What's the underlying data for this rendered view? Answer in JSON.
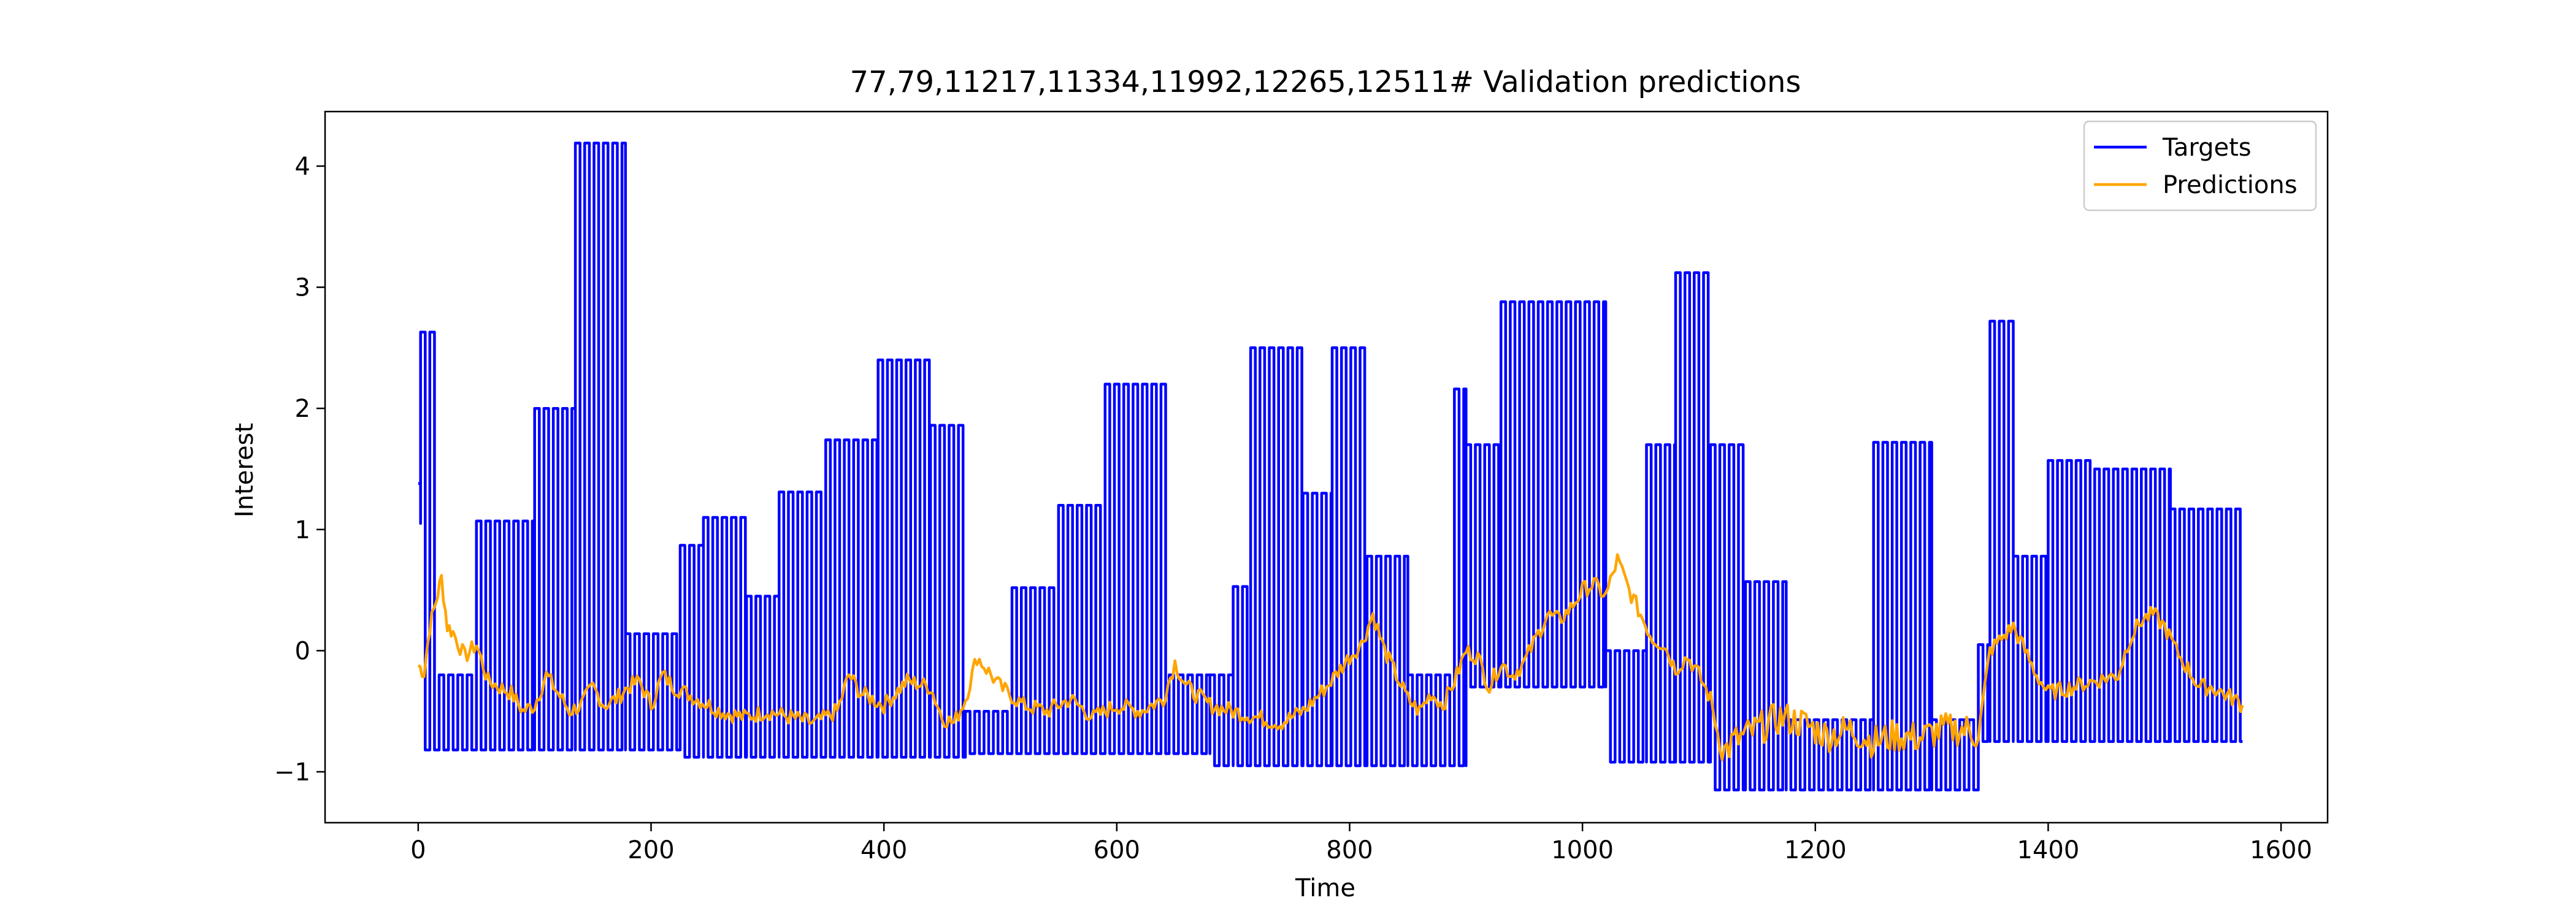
{
  "chart_data": {
    "type": "line",
    "title": "77,79,11217,11334,11992,12265,12511# Validation predictions",
    "xlabel": "Time",
    "ylabel": "Interest",
    "xlim": [
      -80,
      1640
    ],
    "ylim": [
      -1.42,
      4.45
    ],
    "xticks": [
      0,
      200,
      400,
      600,
      800,
      1000,
      1200,
      1400,
      1600
    ],
    "yticks": [
      -1,
      0,
      1,
      2,
      3,
      4
    ],
    "grid": false,
    "legend": "upper right",
    "colors": {
      "Targets": "#0000ff",
      "Predictions": "#ffa500"
    },
    "series": [
      {
        "name": "Targets",
        "style": "oscillating square wave between low and high envelope every ~8 steps",
        "segments": [
          {
            "x": [
              0,
              2
            ],
            "hi": 1.38,
            "lo": 1.05
          },
          {
            "x": [
              2,
              18
            ],
            "hi": 2.63,
            "lo": -0.82
          },
          {
            "x": [
              18,
              50
            ],
            "hi": -0.2,
            "lo": -0.82
          },
          {
            "x": [
              50,
              100
            ],
            "hi": 1.07,
            "lo": -0.82
          },
          {
            "x": [
              100,
              135
            ],
            "hi": 2.0,
            "lo": -0.82
          },
          {
            "x": [
              135,
              178
            ],
            "hi": 4.19,
            "lo": -0.82
          },
          {
            "x": [
              178,
              225
            ],
            "hi": 0.14,
            "lo": -0.82
          },
          {
            "x": [
              225,
              245
            ],
            "hi": 0.87,
            "lo": -0.88
          },
          {
            "x": [
              245,
              282
            ],
            "hi": 1.1,
            "lo": -0.88
          },
          {
            "x": [
              282,
              310
            ],
            "hi": 0.45,
            "lo": -0.88
          },
          {
            "x": [
              310,
              350
            ],
            "hi": 1.31,
            "lo": -0.88
          },
          {
            "x": [
              350,
              395
            ],
            "hi": 1.74,
            "lo": -0.88
          },
          {
            "x": [
              395,
              440
            ],
            "hi": 2.4,
            "lo": -0.88
          },
          {
            "x": [
              440,
              470
            ],
            "hi": 1.86,
            "lo": -0.88
          },
          {
            "x": [
              470,
              510
            ],
            "hi": -0.5,
            "lo": -0.85
          },
          {
            "x": [
              510,
              550
            ],
            "hi": 0.52,
            "lo": -0.85
          },
          {
            "x": [
              550,
              590
            ],
            "hi": 1.2,
            "lo": -0.85
          },
          {
            "x": [
              590,
              645
            ],
            "hi": 2.2,
            "lo": -0.85
          },
          {
            "x": [
              645,
              680
            ],
            "hi": -0.2,
            "lo": -0.85
          },
          {
            "x": [
              680,
              700
            ],
            "hi": -0.2,
            "lo": -0.95
          },
          {
            "x": [
              700,
              715
            ],
            "hi": 0.53,
            "lo": -0.95
          },
          {
            "x": [
              715,
              760
            ],
            "hi": 2.5,
            "lo": -0.95
          },
          {
            "x": [
              760,
              785
            ],
            "hi": 1.3,
            "lo": -0.95
          },
          {
            "x": [
              785,
              815
            ],
            "hi": 2.5,
            "lo": -0.95
          },
          {
            "x": [
              815,
              850
            ],
            "hi": 0.78,
            "lo": -0.95
          },
          {
            "x": [
              850,
              890
            ],
            "hi": -0.2,
            "lo": -0.95
          },
          {
            "x": [
              890,
              900
            ],
            "hi": 2.16,
            "lo": -0.95
          },
          {
            "x": [
              900,
              930
            ],
            "hi": 1.7,
            "lo": -0.3
          },
          {
            "x": [
              930,
              1020
            ],
            "hi": 2.88,
            "lo": -0.3
          },
          {
            "x": [
              1020,
              1055
            ],
            "hi": 0.0,
            "lo": -0.92
          },
          {
            "x": [
              1055,
              1080
            ],
            "hi": 1.7,
            "lo": -0.92
          },
          {
            "x": [
              1080,
              1110
            ],
            "hi": 3.12,
            "lo": -0.92
          },
          {
            "x": [
              1110,
              1140
            ],
            "hi": 1.7,
            "lo": -1.15
          },
          {
            "x": [
              1140,
              1175
            ],
            "hi": 0.57,
            "lo": -1.15
          },
          {
            "x": [
              1175,
              1250
            ],
            "hi": -0.57,
            "lo": -1.15
          },
          {
            "x": [
              1250,
              1300
            ],
            "hi": 1.72,
            "lo": -1.15
          },
          {
            "x": [
              1300,
              1340
            ],
            "hi": -0.57,
            "lo": -1.15
          },
          {
            "x": [
              1340,
              1350
            ],
            "hi": 0.05,
            "lo": -0.75
          },
          {
            "x": [
              1350,
              1370
            ],
            "hi": 2.72,
            "lo": -0.75
          },
          {
            "x": [
              1370,
              1400
            ],
            "hi": 0.78,
            "lo": -0.75
          },
          {
            "x": [
              1400,
              1440
            ],
            "hi": 1.57,
            "lo": -0.75
          },
          {
            "x": [
              1440,
              1505
            ],
            "hi": 1.5,
            "lo": -0.75
          },
          {
            "x": [
              1505,
              1545
            ],
            "hi": 1.17,
            "lo": -0.75
          },
          {
            "x": [
              1545,
              1567
            ],
            "hi": 1.17,
            "lo": -0.75
          }
        ]
      },
      {
        "name": "Predictions",
        "style": "noisy line",
        "x": [
          0,
          5,
          10,
          15,
          20,
          25,
          30,
          40,
          50,
          60,
          70,
          80,
          90,
          100,
          110,
          120,
          130,
          140,
          150,
          160,
          170,
          180,
          190,
          200,
          210,
          220,
          230,
          240,
          250,
          260,
          280,
          300,
          320,
          340,
          360,
          370,
          380,
          400,
          420,
          440,
          450,
          460,
          470,
          480,
          500,
          520,
          540,
          560,
          580,
          600,
          620,
          640,
          650,
          660,
          680,
          700,
          720,
          740,
          760,
          780,
          800,
          810,
          820,
          830,
          840,
          850,
          860,
          870,
          880,
          890,
          900,
          910,
          920,
          930,
          940,
          950,
          960,
          970,
          980,
          990,
          1000,
          1010,
          1020,
          1030,
          1040,
          1050,
          1060,
          1070,
          1080,
          1090,
          1100,
          1110,
          1120,
          1130,
          1150,
          1170,
          1190,
          1210,
          1230,
          1250,
          1270,
          1290,
          1310,
          1330,
          1340,
          1350,
          1360,
          1370,
          1380,
          1390,
          1400,
          1420,
          1440,
          1460,
          1470,
          1480,
          1490,
          1500,
          1510,
          1520,
          1530,
          1540,
          1550,
          1560,
          1567
        ],
        "values": [
          -0.12,
          -0.18,
          0.2,
          0.4,
          0.6,
          0.2,
          0.15,
          -0.05,
          0.05,
          -0.25,
          -0.3,
          -0.35,
          -0.5,
          -0.45,
          -0.2,
          -0.35,
          -0.5,
          -0.45,
          -0.3,
          -0.45,
          -0.4,
          -0.3,
          -0.25,
          -0.45,
          -0.2,
          -0.3,
          -0.35,
          -0.4,
          -0.45,
          -0.5,
          -0.55,
          -0.5,
          -0.55,
          -0.6,
          -0.5,
          -0.2,
          -0.35,
          -0.45,
          -0.25,
          -0.3,
          -0.55,
          -0.6,
          -0.4,
          -0.05,
          -0.3,
          -0.45,
          -0.5,
          -0.4,
          -0.55,
          -0.45,
          -0.5,
          -0.4,
          -0.1,
          -0.3,
          -0.45,
          -0.5,
          -0.55,
          -0.6,
          -0.5,
          -0.3,
          -0.05,
          0.05,
          0.3,
          0.0,
          -0.2,
          -0.4,
          -0.5,
          -0.35,
          -0.45,
          -0.25,
          0.0,
          -0.05,
          -0.3,
          -0.1,
          -0.2,
          -0.1,
          0.1,
          0.3,
          0.25,
          0.35,
          0.5,
          0.55,
          0.45,
          0.75,
          0.5,
          0.3,
          0.1,
          0.05,
          -0.15,
          -0.05,
          -0.2,
          -0.4,
          -0.85,
          -0.75,
          -0.65,
          -0.55,
          -0.6,
          -0.7,
          -0.65,
          -0.75,
          -0.7,
          -0.72,
          -0.65,
          -0.65,
          -0.7,
          0.0,
          0.1,
          0.2,
          0.0,
          -0.2,
          -0.35,
          -0.3,
          -0.25,
          -0.2,
          0.1,
          0.25,
          0.3,
          0.2,
          0.0,
          -0.15,
          -0.3,
          -0.3,
          -0.35,
          -0.4,
          -0.45
        ]
      }
    ]
  }
}
